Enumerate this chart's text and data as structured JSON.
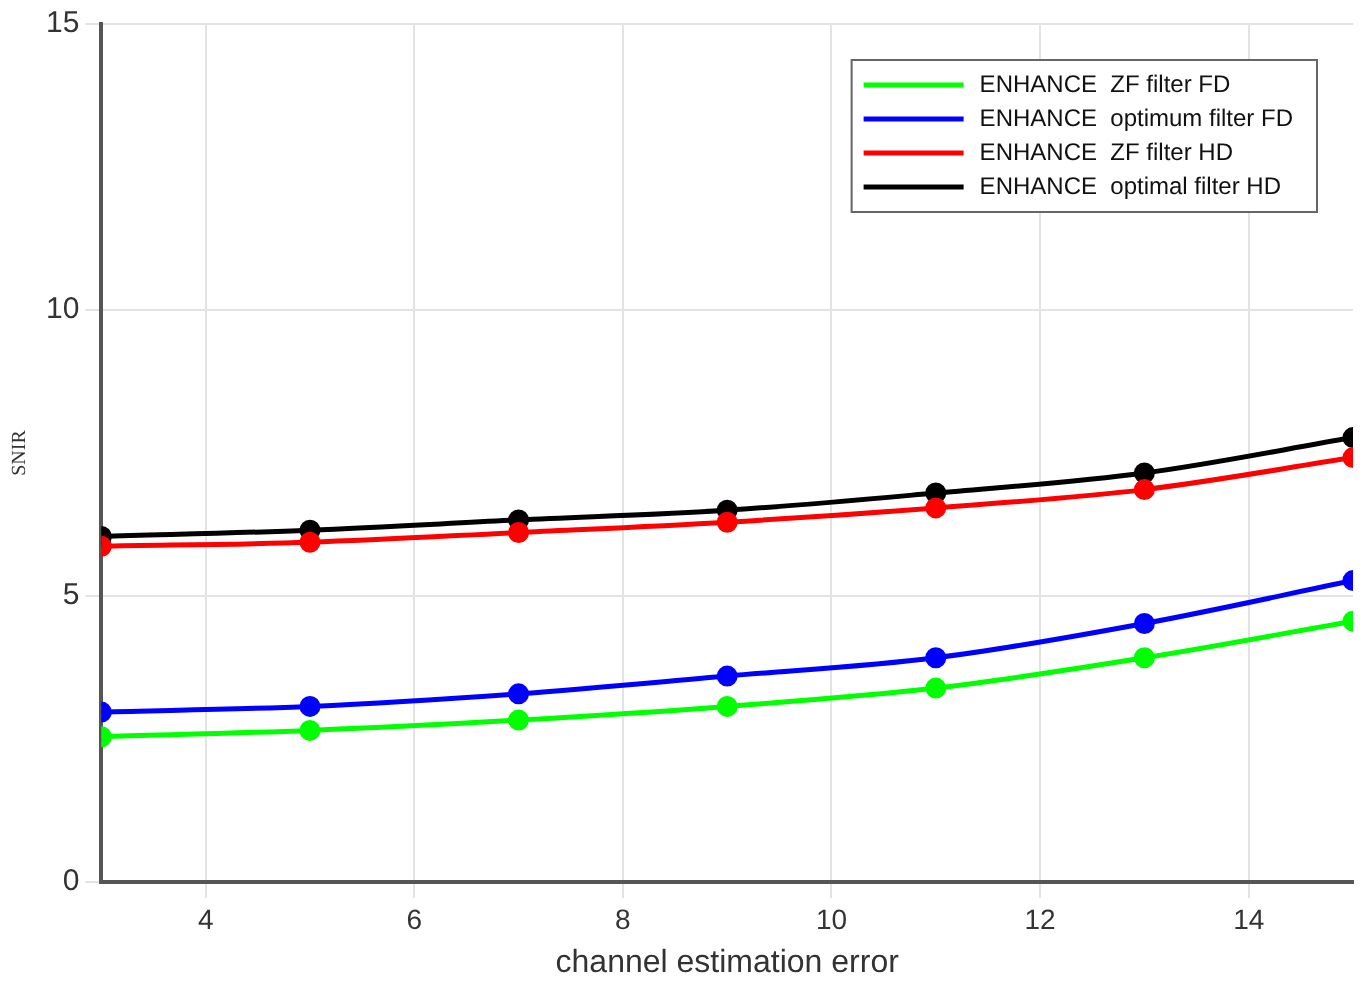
{
  "chart_data": {
    "type": "line",
    "xlabel": "channel estimation error",
    "ylabel": "SNIR",
    "x": [
      3,
      5,
      7,
      9,
      11,
      13,
      15
    ],
    "xlim": [
      3,
      15
    ],
    "xticks": [
      4,
      6,
      8,
      10,
      12,
      14
    ],
    "ylim": [
      0,
      15
    ],
    "yticks": [
      0,
      5,
      10,
      15
    ],
    "grid": true,
    "legend": "top right",
    "marker": "circle",
    "line_style": "solid",
    "series": [
      {
        "name": "ENHANCE  ZF filter FD",
        "color": "#00ff00",
        "values": [
          2.54,
          2.65,
          2.83,
          3.07,
          3.39,
          3.92,
          4.56
        ]
      },
      {
        "name": "ENHANCE  optimum filter FD",
        "color": "#0000ff",
        "values": [
          2.97,
          3.07,
          3.29,
          3.6,
          3.92,
          4.52,
          5.27
        ]
      },
      {
        "name": "ENHANCE  ZF filter HD",
        "color": "#ff0000",
        "values": [
          5.87,
          5.94,
          6.11,
          6.29,
          6.54,
          6.86,
          7.42
        ]
      },
      {
        "name": "ENHANCE  optimal filter HD",
        "color": "#000000",
        "values": [
          6.04,
          6.15,
          6.33,
          6.5,
          6.8,
          7.15,
          7.77
        ]
      }
    ]
  }
}
